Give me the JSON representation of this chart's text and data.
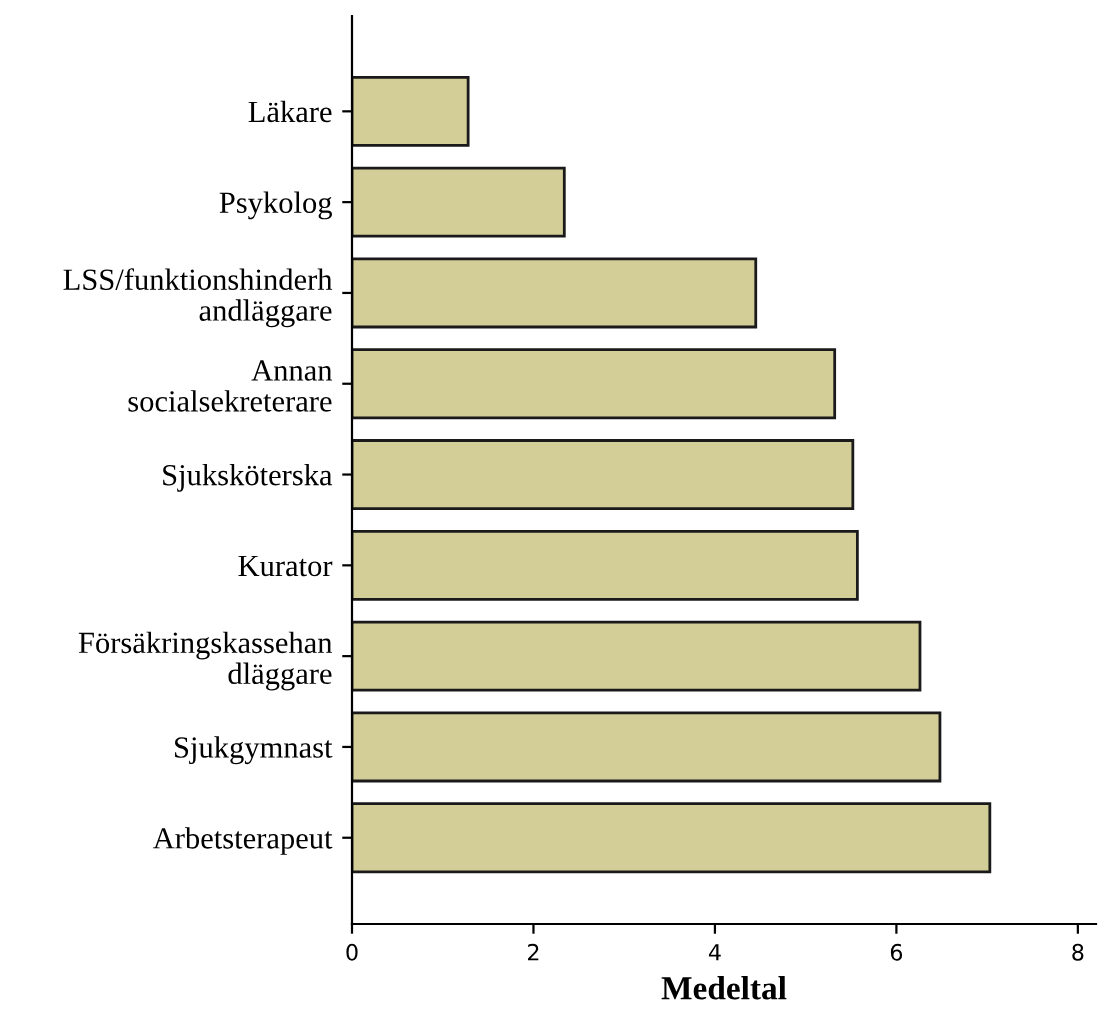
{
  "chart_data": {
    "type": "bar",
    "orientation": "horizontal",
    "xlabel": "Medeltal",
    "categories": [
      "Läkare",
      "Psykolog",
      "LSS/funktionshinderh\nandläggare",
      "Annan\nsocialsekreterare",
      "Sjuksköterska",
      "Kurator",
      "Försäkringskassehan\ndläggare",
      "Sjukgymnast",
      "Arbetsterapeut"
    ],
    "values": [
      1.28,
      2.34,
      4.45,
      5.32,
      5.52,
      5.57,
      6.26,
      6.48,
      7.03
    ],
    "color": "#d3cd98",
    "xlim": [
      0,
      8.2
    ],
    "xticks": [
      0,
      2,
      4,
      6,
      8
    ],
    "grid": false,
    "legend": false
  }
}
